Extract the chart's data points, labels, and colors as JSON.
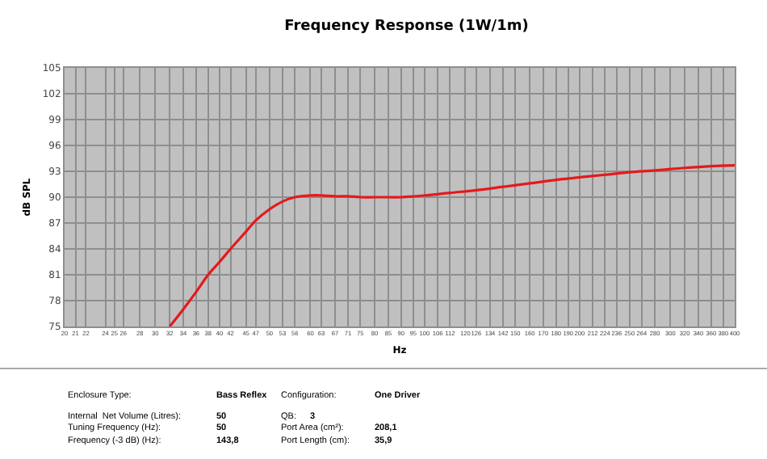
{
  "chart_data": {
    "type": "line",
    "title": "Frequency Response (1W/1m)",
    "xlabel": "Hz",
    "ylabel": "dB SPL",
    "log": "x",
    "grid": true,
    "marker": "none",
    "line_style": "solid",
    "xlim": [
      20,
      400
    ],
    "xticks": [
      20,
      21,
      22,
      24,
      25,
      26,
      28,
      30,
      32,
      34,
      36,
      38,
      40,
      42,
      45,
      47,
      50,
      53,
      56,
      60,
      63,
      67,
      71,
      75,
      80,
      85,
      90,
      95,
      100,
      106,
      112,
      120,
      126,
      134,
      142,
      150,
      160,
      170,
      180,
      190,
      200,
      212,
      224,
      236,
      250,
      264,
      280,
      300,
      320,
      340,
      360,
      380,
      400
    ],
    "ylim": [
      75,
      105
    ],
    "yticks": [
      75,
      78,
      81,
      84,
      87,
      90,
      93,
      96,
      99,
      102,
      105
    ],
    "series": [
      {
        "color": "#e41a1c",
        "x": [
          32,
          34,
          36,
          38,
          40,
          42,
          45,
          47,
          50,
          53,
          56,
          60,
          63,
          67,
          71,
          75,
          80,
          85,
          90,
          100,
          112,
          126,
          142,
          160,
          180,
          200,
          224,
          250,
          280,
          320,
          360,
          400
        ],
        "values": [
          75,
          77,
          79,
          81,
          82.5,
          84,
          86,
          87.3,
          88.6,
          89.5,
          90,
          90.2,
          90.2,
          90.1,
          90.1,
          90,
          90,
          90,
          90,
          90.2,
          90.5,
          90.8,
          91.2,
          91.6,
          92,
          92.3,
          92.6,
          92.9,
          93.1,
          93.4,
          93.6,
          93.7
        ]
      }
    ],
    "annotations": [
      "Enclosure Type:",
      "Bass Reflex",
      "Configuration:",
      "One Driver",
      "Internal  Net Volume (Litres):",
      "50",
      "QB:",
      "3",
      "Tuning Frequency (Hz):",
      "50",
      "Port Area (cm²):",
      "208,1",
      "Frequency (-3 dB) (Hz):",
      "143,8",
      "Port Length (cm):",
      "35,9"
    ]
  }
}
